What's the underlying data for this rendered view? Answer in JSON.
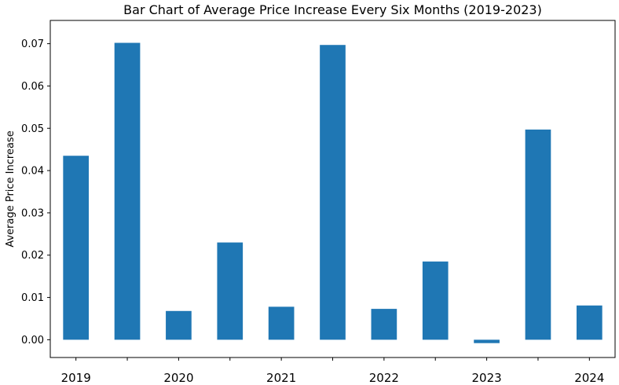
{
  "chart_data": {
    "type": "bar",
    "title": "Bar Chart of Average Price Increase Every Six Months (2019-2023)",
    "xlabel": "",
    "ylabel": "Average Price Increase",
    "categories": [
      "2019-H1",
      "2019-H2",
      "2020-H1",
      "2020-H2",
      "2021-H1",
      "2021-H2",
      "2022-H1",
      "2022-H2",
      "2023-H1",
      "2023-H2",
      "2024-H1"
    ],
    "values": [
      0.0435,
      0.0702,
      0.0068,
      0.023,
      0.0078,
      0.0697,
      0.0073,
      0.0185,
      -0.0008,
      0.0497,
      0.0081
    ],
    "xtick_labels": [
      "2019",
      "2020",
      "2021",
      "2022",
      "2023",
      "2024"
    ],
    "ylim": [
      -0.0042,
      0.0755
    ],
    "yticks": [
      0.0,
      0.01,
      0.02,
      0.03,
      0.04,
      0.05,
      0.06,
      0.07
    ],
    "ytick_labels": [
      "0.00",
      "0.01",
      "0.02",
      "0.03",
      "0.04",
      "0.05",
      "0.06",
      "0.07"
    ],
    "bar_color": "#1f77b4",
    "grid": false,
    "legend": "none"
  }
}
